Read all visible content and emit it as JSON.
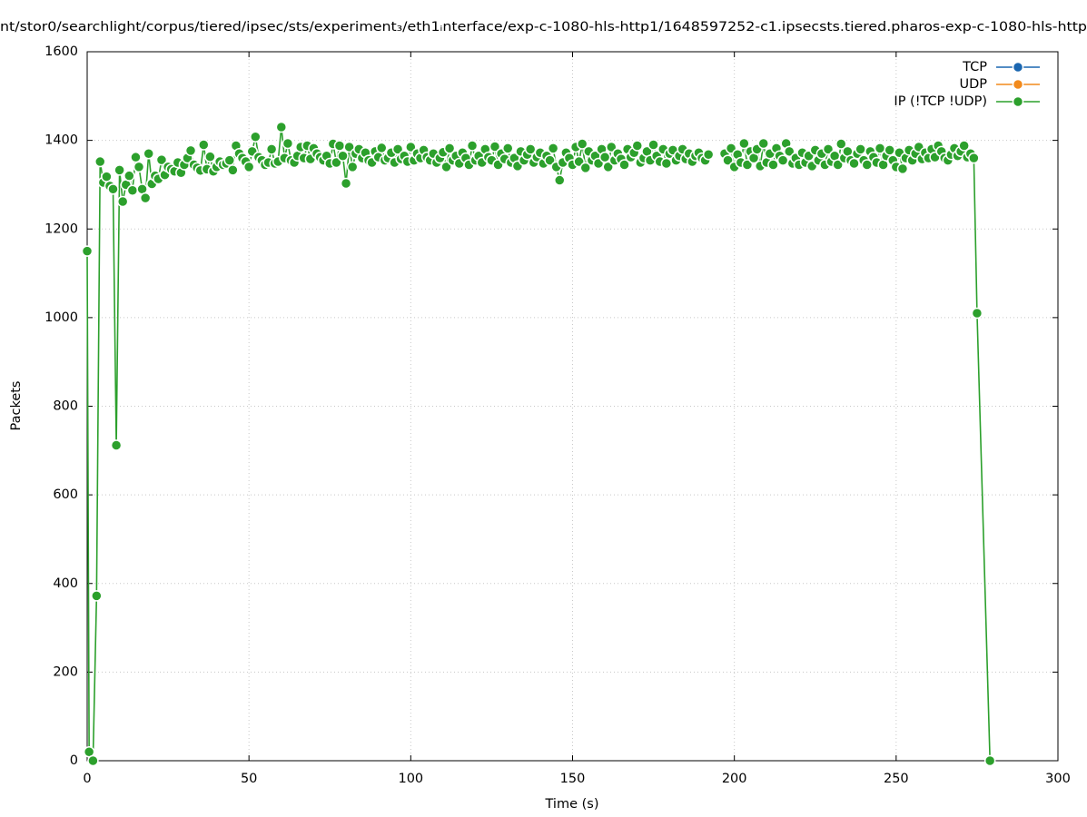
{
  "chart_data": {
    "type": "line",
    "title": "nt/stor0/searchlight/corpus/tiered/ipsec/sts/experiment₃/eth1ᵢnterface/exp-c-1080-hls-http1/1648597252-c1.ipsecsts.tiered.pharos-exp-c-1080-hls-http",
    "x_label": "Time (s)",
    "y_label": "Packets",
    "xlim": [
      0,
      300
    ],
    "xticks": [
      0,
      50,
      100,
      150,
      200,
      250,
      300
    ],
    "ylim": [
      0,
      1600
    ],
    "yticks": [
      0,
      200,
      400,
      600,
      800,
      1000,
      1200,
      1400,
      1600
    ],
    "grid": true,
    "legend": "top-right",
    "series": [
      {
        "name": "TCP",
        "color": "#1a66b0",
        "x": [],
        "values": []
      },
      {
        "name": "UDP",
        "color": "#f28a1c",
        "x": [],
        "values": []
      },
      {
        "name": "IP (!TCP  !UDP)",
        "color": "#2ca02c",
        "x": [
          0,
          0.6,
          1.8,
          2.9,
          4,
          5,
          6,
          7,
          8,
          9,
          10,
          11,
          12,
          13,
          14,
          15,
          16,
          17,
          18,
          19,
          20,
          21,
          22,
          23,
          24,
          25,
          26,
          27,
          28,
          29,
          30,
          31,
          32,
          33,
          34,
          35,
          36,
          37,
          38,
          39,
          40,
          41,
          42,
          43,
          44,
          45,
          46,
          47,
          48,
          49,
          50,
          51,
          52,
          53,
          54,
          55,
          56,
          57,
          58,
          59,
          60,
          61,
          62,
          63,
          64,
          65,
          66,
          67,
          68,
          69,
          70,
          71,
          72,
          73,
          74,
          75,
          76,
          77,
          78,
          79,
          80,
          81,
          82,
          83,
          84,
          85,
          86,
          87,
          88,
          89,
          90,
          91,
          92,
          93,
          94,
          95,
          96,
          97,
          98,
          99,
          100,
          101,
          102,
          103,
          104,
          105,
          106,
          107,
          108,
          109,
          110,
          111,
          112,
          113,
          114,
          115,
          116,
          117,
          118,
          119,
          120,
          121,
          122,
          123,
          124,
          125,
          126,
          127,
          128,
          129,
          130,
          131,
          132,
          133,
          134,
          135,
          136,
          137,
          138,
          139,
          140,
          141,
          142,
          143,
          144,
          145,
          146,
          147,
          148,
          149,
          150,
          151,
          152,
          153,
          154,
          155,
          156,
          157,
          158,
          159,
          160,
          161,
          162,
          163,
          164,
          165,
          166,
          167,
          168,
          169,
          170,
          171,
          172,
          173,
          174,
          175,
          176,
          177,
          178,
          179,
          180,
          181,
          182,
          183,
          184,
          185,
          186,
          187,
          188,
          189,
          190,
          191,
          192,
          193,
          194,
          195,
          196,
          197,
          198,
          199,
          200,
          201,
          202,
          203,
          204,
          205,
          206,
          207,
          208,
          209,
          210,
          211,
          212,
          213,
          214,
          215,
          216,
          217,
          218,
          219,
          220,
          221,
          222,
          223,
          224,
          225,
          226,
          227,
          228,
          229,
          230,
          231,
          232,
          233,
          234,
          235,
          236,
          237,
          238,
          239,
          240,
          241,
          242,
          243,
          244,
          245,
          246,
          247,
          248,
          249,
          250,
          251,
          252,
          253,
          254,
          255,
          256,
          257,
          258,
          259,
          260,
          261,
          262,
          263,
          264,
          265,
          266,
          267,
          268,
          269,
          270,
          271,
          272,
          273,
          274,
          275,
          279
        ],
        "values": [
          1150,
          20,
          0,
          372,
          1352,
          1305,
          1318,
          1297,
          1290,
          712,
          1333,
          1262,
          1300,
          1320,
          1287,
          1362,
          1340,
          1290,
          1270,
          1370,
          1302,
          1320,
          1313,
          1356,
          1322,
          1340,
          1335,
          1330,
          1350,
          1327,
          1345,
          1360,
          1377,
          1345,
          1338,
          1332,
          1390,
          1335,
          1363,
          1330,
          1340,
          1352,
          1345,
          1348,
          1355,
          1333,
          1388,
          1370,
          1360,
          1352,
          1340,
          1375,
          1408,
          1362,
          1355,
          1345,
          1350,
          1380,
          1348,
          1352,
          1430,
          1360,
          1393,
          1355,
          1350,
          1365,
          1385,
          1360,
          1388,
          1358,
          1382,
          1370,
          1362,
          1355,
          1365,
          1348,
          1392,
          1350,
          1388,
          1365,
          1303,
          1385,
          1340,
          1370,
          1380,
          1360,
          1372,
          1355,
          1350,
          1375,
          1362,
          1383,
          1355,
          1360,
          1372,
          1350,
          1380,
          1358,
          1365,
          1352,
          1385,
          1355,
          1370,
          1360,
          1378,
          1362,
          1355,
          1370,
          1350,
          1360,
          1373,
          1340,
          1382,
          1355,
          1365,
          1348,
          1372,
          1360,
          1345,
          1388,
          1355,
          1365,
          1350,
          1380,
          1362,
          1355,
          1386,
          1345,
          1370,
          1358,
          1382,
          1350,
          1360,
          1342,
          1375,
          1355,
          1368,
          1380,
          1350,
          1362,
          1372,
          1348,
          1365,
          1355,
          1382,
          1340,
          1310,
          1350,
          1372,
          1360,
          1345,
          1385,
          1352,
          1392,
          1338,
          1375,
          1355,
          1365,
          1348,
          1380,
          1362,
          1340,
          1385,
          1355,
          1370,
          1358,
          1345,
          1380,
          1362,
          1372,
          1388,
          1350,
          1360,
          1375,
          1355,
          1390,
          1365,
          1352,
          1380,
          1348,
          1370,
          1378,
          1355,
          1365,
          1380,
          1358,
          1370,
          1352,
          1365,
          1372,
          1360,
          1355,
          1368,
          null,
          null,
          null,
          null,
          1370,
          1355,
          1382,
          1340,
          1368,
          1350,
          1393,
          1345,
          1375,
          1360,
          1380,
          1342,
          1393,
          1350,
          1370,
          1345,
          1382,
          1365,
          1355,
          1393,
          1375,
          1348,
          1360,
          1345,
          1372,
          1350,
          1365,
          1342,
          1378,
          1355,
          1370,
          1345,
          1380,
          1352,
          1365,
          1345,
          1392,
          1360,
          1375,
          1355,
          1348,
          1370,
          1380,
          1355,
          1345,
          1375,
          1362,
          1350,
          1382,
          1345,
          1365,
          1378,
          1355,
          1340,
          1372,
          1336,
          1360,
          1378,
          1355,
          1370,
          1385,
          1358,
          1372,
          1360,
          1380,
          1362,
          1388,
          1375,
          1360,
          1355,
          1368,
          1382,
          1365,
          1375,
          1388,
          1362,
          1370,
          1360,
          1010,
          0
        ]
      }
    ]
  }
}
